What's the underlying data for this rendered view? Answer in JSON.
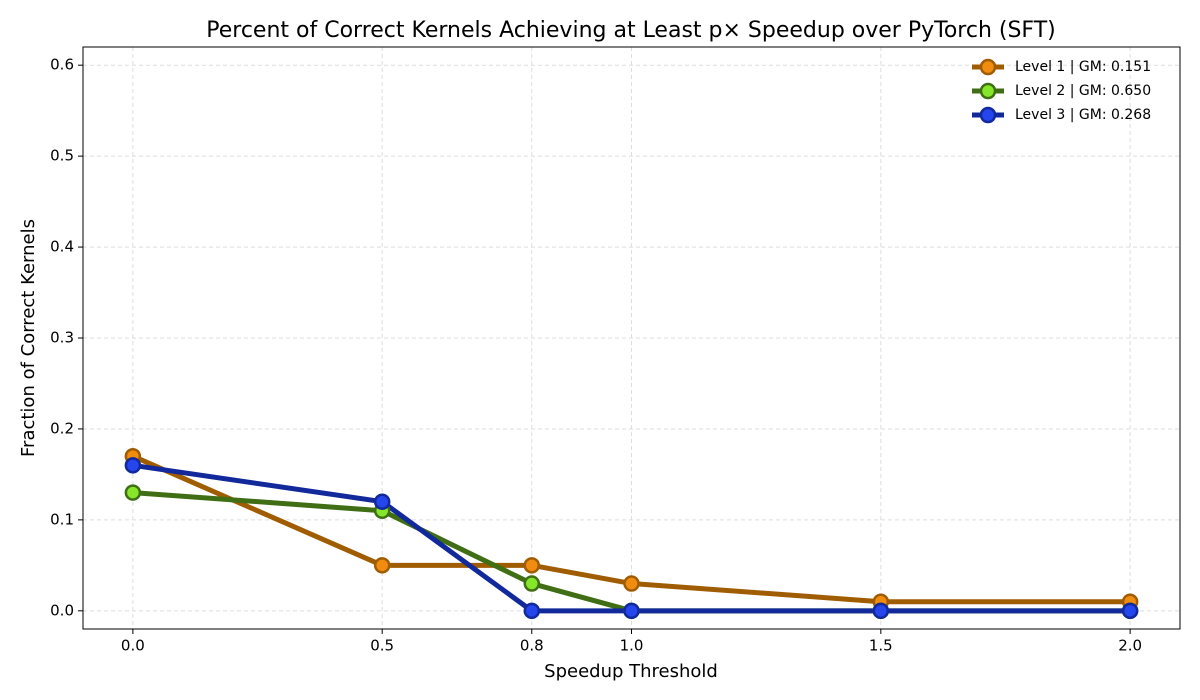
{
  "chart_data": {
    "type": "line",
    "title": "Percent of Correct Kernels Achieving at Least p× Speedup over PyTorch (SFT)",
    "x_label": "Speedup Threshold",
    "y_label": "Fraction of Correct Kernels",
    "x": [
      0,
      0.5,
      0.8,
      1.0,
      1.5,
      2.0
    ],
    "series": [
      {
        "name": "Level 1 | GM: 0.151",
        "color": "#a05c00",
        "marker_color": "#f08c10",
        "values": [
          0.17,
          0.05,
          0.05,
          0.03,
          0.01,
          0.01
        ]
      },
      {
        "name": "Level 2 | GM: 0.650",
        "color": "#3f6e14",
        "marker_color": "#86e62a",
        "values": [
          0.13,
          0.11,
          0.03,
          0.0,
          0.0,
          0.0
        ]
      },
      {
        "name": "Level 3 | GM: 0.268",
        "color": "#12299c",
        "marker_color": "#2446ec",
        "values": [
          0.16,
          0.12,
          0.0,
          0.0,
          0.0,
          0.0
        ]
      }
    ],
    "xlim": [
      -0.1,
      2.1
    ],
    "ylim": [
      -0.02,
      0.62
    ],
    "xticks": [
      {
        "value": 0,
        "label": "0.0"
      },
      0.5,
      0.8,
      {
        "value": 1.0,
        "label": "1.0"
      },
      1.5,
      {
        "value": 2.0,
        "label": "2.0"
      }
    ],
    "yticks": [
      {
        "value": 0,
        "label": "0.0"
      },
      0.1,
      0.2,
      0.3,
      0.4,
      0.5,
      0.6
    ],
    "grid": true,
    "legend": "upper-right"
  }
}
